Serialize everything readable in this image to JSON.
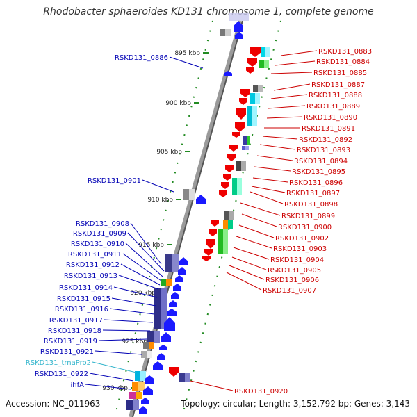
{
  "title": "Rhodobacter sphaeroides KD131 chromosome 1, complete genome",
  "footer": {
    "accession": "Accession: NC_011963",
    "summary": "Topology: circular; Length: 3,152,792 bp; Genes: 3,143"
  },
  "colors": {
    "left_label": "#0000b4",
    "right_label": "#cc0000",
    "trna_label": "#33b5cc",
    "axis": "#555555",
    "tick": "#228b22",
    "forward_arrow": "#1a1aff",
    "reverse_arrow": "#ee0000"
  },
  "scale_labels": [
    "895 kbp",
    "900 kbp",
    "905 kbp",
    "910 kbp",
    "915 kbp",
    "920 kbp",
    "925 kbp",
    "930 kbp"
  ],
  "left_genes": [
    "RSKD131_0886",
    "RSKD131_0901",
    "RSKD131_0908",
    "RSKD131_0909",
    "RSKD131_0910",
    "RSKD131_0911",
    "RSKD131_0912",
    "RSKD131_0913",
    "RSKD131_0914",
    "RSKD131_0915",
    "RSKD131_0916",
    "RSKD131_0917",
    "RSKD131_0918",
    "RSKD131_0919",
    "RSKD131_0921",
    "RSKD131_trnaPro2",
    "RSKD131_0922",
    "ihfA"
  ],
  "right_genes": [
    "RSKD131_0883",
    "RSKD131_0884",
    "RSKD131_0885",
    "RSKD131_0887",
    "RSKD131_0888",
    "RSKD131_0889",
    "RSKD131_0890",
    "RSKD131_0891",
    "RSKD131_0892",
    "RSKD131_0893",
    "RSKD131_0894",
    "RSKD131_0895",
    "RSKD131_0896",
    "RSKD131_0897",
    "RSKD131_0898",
    "RSKD131_0899",
    "RSKD131_0900",
    "RSKD131_0902",
    "RSKD131_0903",
    "RSKD131_0904",
    "RSKD131_0905",
    "RSKD131_0906",
    "RSKD131_0907",
    "RSKD131_0920"
  ]
}
